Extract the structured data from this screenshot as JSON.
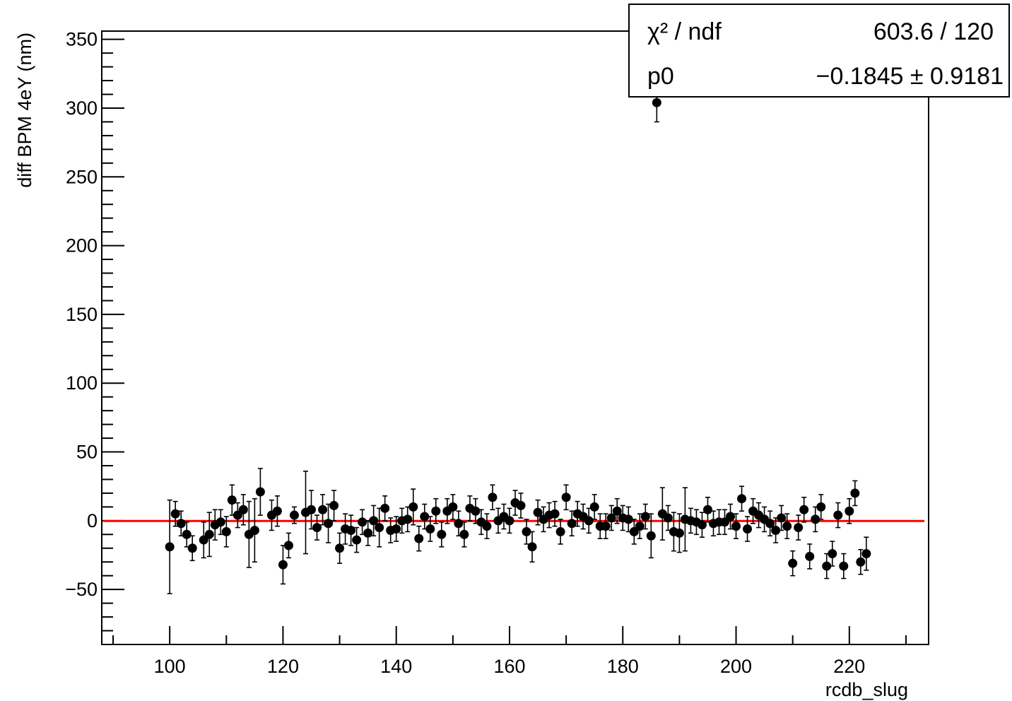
{
  "chart_data": {
    "type": "scatter",
    "title": "",
    "xlabel": "rcdb_slug",
    "ylabel": "diff BPM 4eY (nm)",
    "xlim": [
      88,
      234
    ],
    "ylim": [
      -90,
      356
    ],
    "x_ticks": [
      100,
      120,
      140,
      160,
      180,
      200,
      220
    ],
    "y_ticks": [
      -50,
      0,
      50,
      100,
      150,
      200,
      250,
      300,
      350
    ],
    "grid": false,
    "legend": "none",
    "colors": {
      "points": "#000000",
      "fit": "#ff0000"
    },
    "fit": {
      "function": "constant",
      "p0": -0.1845,
      "stats": [
        {
          "label": "χ² / ndf",
          "value": "603.6 / 120"
        },
        {
          "label": "p0",
          "value": "−0.1845 ± 0.9181"
        }
      ]
    },
    "series": [
      {
        "points": [
          {
            "x": 100,
            "y": -19,
            "e": 34
          },
          {
            "x": 101,
            "y": 5,
            "e": 9
          },
          {
            "x": 102,
            "y": -2,
            "e": 9
          },
          {
            "x": 103,
            "y": -10,
            "e": 9
          },
          {
            "x": 104,
            "y": -20,
            "e": 9
          },
          {
            "x": 106,
            "y": -14,
            "e": 13
          },
          {
            "x": 107,
            "y": -10,
            "e": 16
          },
          {
            "x": 108,
            "y": -3,
            "e": 11
          },
          {
            "x": 109,
            "y": -1,
            "e": 9
          },
          {
            "x": 110,
            "y": -8,
            "e": 11
          },
          {
            "x": 111,
            "y": 15,
            "e": 11
          },
          {
            "x": 112,
            "y": 4,
            "e": 9
          },
          {
            "x": 113,
            "y": 8,
            "e": 11
          },
          {
            "x": 114,
            "y": -10,
            "e": 24
          },
          {
            "x": 115,
            "y": -7,
            "e": 23
          },
          {
            "x": 116,
            "y": 21,
            "e": 17
          },
          {
            "x": 118,
            "y": 4,
            "e": 11
          },
          {
            "x": 119,
            "y": 7,
            "e": 11
          },
          {
            "x": 120,
            "y": -32,
            "e": 14
          },
          {
            "x": 121,
            "y": -18,
            "e": 9
          },
          {
            "x": 122,
            "y": 4,
            "e": 6
          },
          {
            "x": 124,
            "y": 6,
            "e": 30
          },
          {
            "x": 125,
            "y": 8,
            "e": 14
          },
          {
            "x": 126,
            "y": -5,
            "e": 9
          },
          {
            "x": 127,
            "y": 8,
            "e": 11
          },
          {
            "x": 128,
            "y": -2,
            "e": 14
          },
          {
            "x": 129,
            "y": 11,
            "e": 11
          },
          {
            "x": 130,
            "y": -20,
            "e": 11
          },
          {
            "x": 131,
            "y": -6,
            "e": 11
          },
          {
            "x": 132,
            "y": -7,
            "e": 11
          },
          {
            "x": 133,
            "y": -14,
            "e": 9
          },
          {
            "x": 134,
            "y": -1,
            "e": 9
          },
          {
            "x": 135,
            "y": -9,
            "e": 9
          },
          {
            "x": 136,
            "y": 0,
            "e": 11
          },
          {
            "x": 137,
            "y": -5,
            "e": 14
          },
          {
            "x": 138,
            "y": 9,
            "e": 9
          },
          {
            "x": 139,
            "y": -7,
            "e": 9
          },
          {
            "x": 140,
            "y": -6,
            "e": 9
          },
          {
            "x": 141,
            "y": 0,
            "e": 9
          },
          {
            "x": 142,
            "y": 1,
            "e": 9
          },
          {
            "x": 143,
            "y": 10,
            "e": 13
          },
          {
            "x": 144,
            "y": -13,
            "e": 9
          },
          {
            "x": 145,
            "y": 3,
            "e": 9
          },
          {
            "x": 146,
            "y": -6,
            "e": 9
          },
          {
            "x": 147,
            "y": 7,
            "e": 9
          },
          {
            "x": 148,
            "y": -10,
            "e": 9
          },
          {
            "x": 149,
            "y": 7,
            "e": 9
          },
          {
            "x": 150,
            "y": 10,
            "e": 9
          },
          {
            "x": 151,
            "y": -2,
            "e": 9
          },
          {
            "x": 152,
            "y": -10,
            "e": 9
          },
          {
            "x": 153,
            "y": 9,
            "e": 9
          },
          {
            "x": 154,
            "y": 7,
            "e": 9
          },
          {
            "x": 155,
            "y": -1,
            "e": 9
          },
          {
            "x": 156,
            "y": -4,
            "e": 9
          },
          {
            "x": 157,
            "y": 17,
            "e": 9
          },
          {
            "x": 158,
            "y": 0,
            "e": 9
          },
          {
            "x": 159,
            "y": 3,
            "e": 9
          },
          {
            "x": 160,
            "y": 0,
            "e": 9
          },
          {
            "x": 161,
            "y": 13,
            "e": 9
          },
          {
            "x": 162,
            "y": 11,
            "e": 9
          },
          {
            "x": 163,
            "y": -8,
            "e": 9
          },
          {
            "x": 164,
            "y": -19,
            "e": 11
          },
          {
            "x": 165,
            "y": 6,
            "e": 9
          },
          {
            "x": 166,
            "y": 1,
            "e": 9
          },
          {
            "x": 167,
            "y": 4,
            "e": 9
          },
          {
            "x": 168,
            "y": 5,
            "e": 9
          },
          {
            "x": 169,
            "y": -8,
            "e": 9
          },
          {
            "x": 170,
            "y": 17,
            "e": 9
          },
          {
            "x": 171,
            "y": -2,
            "e": 9
          },
          {
            "x": 172,
            "y": 5,
            "e": 9
          },
          {
            "x": 173,
            "y": 3,
            "e": 9
          },
          {
            "x": 174,
            "y": 0,
            "e": 9
          },
          {
            "x": 175,
            "y": 10,
            "e": 9
          },
          {
            "x": 176,
            "y": -4,
            "e": 9
          },
          {
            "x": 177,
            "y": -4,
            "e": 9
          },
          {
            "x": 178,
            "y": 2,
            "e": 9
          },
          {
            "x": 179,
            "y": 7,
            "e": 9
          },
          {
            "x": 180,
            "y": 2,
            "e": 9
          },
          {
            "x": 181,
            "y": 1,
            "e": 9
          },
          {
            "x": 182,
            "y": -8,
            "e": 9
          },
          {
            "x": 183,
            "y": -4,
            "e": 9
          },
          {
            "x": 184,
            "y": 3,
            "e": 9
          },
          {
            "x": 185,
            "y": -11,
            "e": 16
          },
          {
            "x": 186,
            "y": 304,
            "e": 14
          },
          {
            "x": 187,
            "y": 5,
            "e": 19
          },
          {
            "x": 188,
            "y": 2,
            "e": 9
          },
          {
            "x": 189,
            "y": -8,
            "e": 14
          },
          {
            "x": 190,
            "y": -9,
            "e": 14
          },
          {
            "x": 191,
            "y": 1,
            "e": 23
          },
          {
            "x": 192,
            "y": 0,
            "e": 9
          },
          {
            "x": 193,
            "y": -1,
            "e": 9
          },
          {
            "x": 194,
            "y": -3,
            "e": 9
          },
          {
            "x": 195,
            "y": 8,
            "e": 9
          },
          {
            "x": 196,
            "y": -2,
            "e": 9
          },
          {
            "x": 197,
            "y": -1,
            "e": 9
          },
          {
            "x": 198,
            "y": -1,
            "e": 9
          },
          {
            "x": 199,
            "y": 3,
            "e": 9
          },
          {
            "x": 200,
            "y": -4,
            "e": 9
          },
          {
            "x": 201,
            "y": 16,
            "e": 9
          },
          {
            "x": 202,
            "y": -6,
            "e": 9
          },
          {
            "x": 203,
            "y": 7,
            "e": 9
          },
          {
            "x": 204,
            "y": 4,
            "e": 9
          },
          {
            "x": 205,
            "y": 1,
            "e": 9
          },
          {
            "x": 206,
            "y": -2,
            "e": 9
          },
          {
            "x": 207,
            "y": -7,
            "e": 9
          },
          {
            "x": 208,
            "y": 2,
            "e": 9
          },
          {
            "x": 209,
            "y": -4,
            "e": 9
          },
          {
            "x": 210,
            "y": -31,
            "e": 9
          },
          {
            "x": 211,
            "y": -5,
            "e": 9
          },
          {
            "x": 212,
            "y": 8,
            "e": 9
          },
          {
            "x": 213,
            "y": -26,
            "e": 9
          },
          {
            "x": 214,
            "y": 1,
            "e": 9
          },
          {
            "x": 215,
            "y": 10,
            "e": 9
          },
          {
            "x": 216,
            "y": -33,
            "e": 9
          },
          {
            "x": 217,
            "y": -24,
            "e": 9
          },
          {
            "x": 218,
            "y": 4,
            "e": 9
          },
          {
            "x": 219,
            "y": -33,
            "e": 9
          },
          {
            "x": 220,
            "y": 7,
            "e": 9
          },
          {
            "x": 221,
            "y": 20,
            "e": 9
          },
          {
            "x": 222,
            "y": -30,
            "e": 9
          },
          {
            "x": 223,
            "y": -24,
            "e": 12
          }
        ]
      }
    ]
  }
}
